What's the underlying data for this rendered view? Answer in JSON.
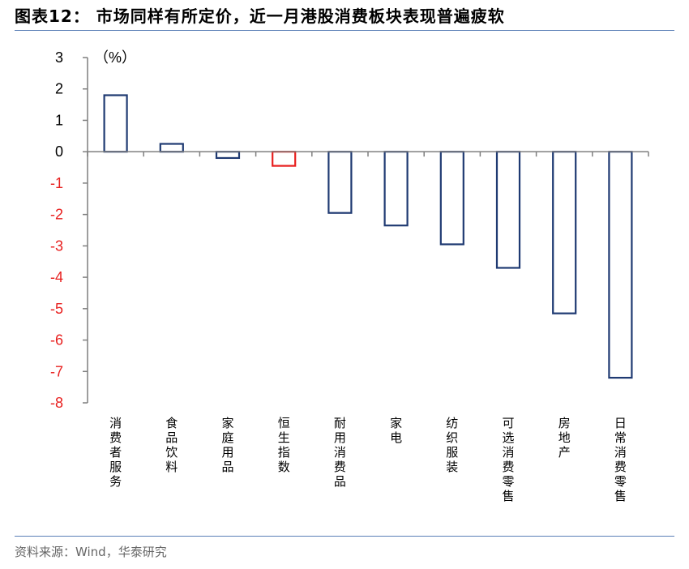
{
  "title": "图表12： 市场同样有所定价，近一月港股消费板块表现普遍疲软",
  "source": "资料来源：Wind，华泰研究",
  "colors": {
    "bar": "#1f3a72",
    "highlight": "#e8201f",
    "negative_tick": "#e8201f",
    "axis": "#7f7f7f",
    "rule": "#5b7fb7"
  },
  "chart_data": {
    "type": "bar",
    "unit_label": "（%）",
    "categories": [
      "消费者服务",
      "食品饮料",
      "家庭用品",
      "恒生指数",
      "耐用消费品",
      "家电",
      "纺织服装",
      "可选消费零售",
      "房地产",
      "日常消费零售"
    ],
    "values": [
      1.8,
      0.25,
      -0.2,
      -0.45,
      -1.95,
      -2.35,
      -2.95,
      -3.7,
      -5.15,
      -7.2
    ],
    "highlight": [
      "恒生指数"
    ],
    "ylim": [
      -8,
      3
    ],
    "yticks": [
      3,
      2,
      1,
      0,
      -1,
      -2,
      -3,
      -4,
      -5,
      -6,
      -7,
      -8
    ],
    "grid": false,
    "legend": "none"
  }
}
